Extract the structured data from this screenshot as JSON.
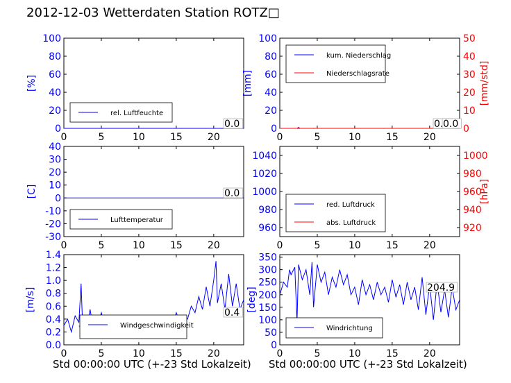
{
  "figure": {
    "title": "2012-12-03 Wetterdaten Station ROTZ□",
    "xlabel": "Std 00:00:00 UTC (+-23 Std Lokalzeit)"
  },
  "colors": {
    "axis_left": "#0000ff",
    "axis_right": "#ff0000",
    "frame": "#000000",
    "series_blue": "#0000ff",
    "series_red": "#ff0000",
    "series_light_blue": "#7777ff"
  },
  "chart_data": [
    {
      "id": "humidity",
      "type": "line",
      "xlim": [
        0,
        24
      ],
      "xticks": [
        0,
        5,
        10,
        15,
        20
      ],
      "ylim": [
        0,
        100
      ],
      "yticks": [
        0,
        20,
        40,
        60,
        80,
        100
      ],
      "ylabel": "[%]",
      "legend": {
        "placement": "lower-left",
        "entries": [
          "rel. Luftfeuchte"
        ]
      },
      "value_box": "0.0",
      "series": [
        {
          "name": "rel. Luftfeuchte",
          "color": "#0000ff",
          "x": [
            0,
            24
          ],
          "y": [
            0,
            0
          ]
        }
      ]
    },
    {
      "id": "precipitation",
      "type": "line",
      "xlim": [
        0,
        24
      ],
      "xticks": [
        0,
        5,
        10,
        15,
        20
      ],
      "ylim": [
        0,
        100
      ],
      "yticks": [
        0,
        20,
        40,
        60,
        80,
        100
      ],
      "ylabel": "[mm]",
      "y2lim": [
        0,
        50
      ],
      "y2ticks": [
        0,
        10,
        20,
        30,
        40,
        50
      ],
      "y2label": "[mm/std]",
      "legend": {
        "placement": "upper-left",
        "entries": [
          "kum. Niederschlag",
          "Niederschlagsrate"
        ]
      },
      "value_box": "0.0",
      "value_box_2": "0.0",
      "series": [
        {
          "name": "kum. Niederschlag",
          "color": "#0000ff",
          "axis": "left",
          "x": [
            0,
            24
          ],
          "y": [
            0,
            0
          ]
        },
        {
          "name": "Niederschlagsrate",
          "color": "#ff0000",
          "axis": "right",
          "x": [
            0,
            2.3,
            2.5,
            2.7,
            24
          ],
          "y": [
            0,
            0,
            0.6,
            0,
            0
          ]
        }
      ]
    },
    {
      "id": "temperature",
      "type": "line",
      "xlim": [
        0,
        24
      ],
      "xticks": [
        0,
        5,
        10,
        15,
        20
      ],
      "ylim": [
        -30,
        40
      ],
      "yticks": [
        -30,
        -20,
        -10,
        0,
        10,
        20,
        30,
        40
      ],
      "ylabel": "[C]",
      "legend": {
        "placement": "lower-left",
        "entries": [
          "Lufttemperatur"
        ]
      },
      "value_box": "0.0",
      "series": [
        {
          "name": "Lufttemperatur",
          "color": "#0000ff",
          "x": [
            0,
            24
          ],
          "y": [
            0,
            0
          ]
        }
      ]
    },
    {
      "id": "pressure",
      "type": "line",
      "xlim": [
        0,
        24
      ],
      "xticks": [
        0,
        5,
        10,
        15,
        20
      ],
      "ylim": [
        950,
        1050
      ],
      "yticks": [
        960,
        980,
        1000,
        1020,
        1040
      ],
      "y2lim": [
        910,
        1010
      ],
      "y2ticks": [
        920,
        940,
        960,
        980,
        1000
      ],
      "y2label": "[hPa]",
      "legend": {
        "placement": "lower-left",
        "entries": [
          "red. Luftdruck",
          "abs. Luftdruck"
        ]
      },
      "series": [
        {
          "name": "red. Luftdruck",
          "color": "#0000ff",
          "x": [],
          "y": []
        },
        {
          "name": "abs. Luftdruck",
          "color": "#ff0000",
          "x": [],
          "y": []
        }
      ]
    },
    {
      "id": "windspeed",
      "type": "line",
      "xlim": [
        0,
        24
      ],
      "xticks": [
        0,
        5,
        10,
        15,
        20
      ],
      "ylim": [
        0,
        1.4
      ],
      "yticks": [
        0.0,
        0.2,
        0.4,
        0.6,
        0.8,
        1.0,
        1.2,
        1.4
      ],
      "ylabel": "[m/s]",
      "legend": {
        "placement": "lower-center",
        "entries": [
          "Windgeschwindigkeit"
        ]
      },
      "value_box": "0.4",
      "series": [
        {
          "name": "Windgeschwindigkeit",
          "color": "#0000ff",
          "x": [
            0,
            0.5,
            1,
            1.5,
            2,
            2.3,
            2.5,
            3,
            3.5,
            4,
            4.5,
            5,
            5.5,
            6,
            6.5,
            7,
            7.5,
            8,
            8.5,
            9,
            9.5,
            10,
            10.5,
            11,
            11.5,
            12,
            12.5,
            13,
            13.5,
            14,
            14.5,
            15,
            15.5,
            16,
            16.5,
            17,
            17.5,
            18,
            18.5,
            19,
            19.5,
            20,
            20.3,
            20.5,
            21,
            21.5,
            22,
            22.5,
            23,
            23.5,
            24
          ],
          "y": [
            0.3,
            0.4,
            0.2,
            0.45,
            0.35,
            0.95,
            0.3,
            0.25,
            0.55,
            0.2,
            0.3,
            0.5,
            0.25,
            0.4,
            0.15,
            0.35,
            0.3,
            0.2,
            0.45,
            0.25,
            0.15,
            0.4,
            0.3,
            0.35,
            0.2,
            0.45,
            0.3,
            0.25,
            0.4,
            0.35,
            0.3,
            0.5,
            0.35,
            0.45,
            0.4,
            0.6,
            0.5,
            0.75,
            0.55,
            0.9,
            0.6,
            1.0,
            1.3,
            0.65,
            0.95,
            0.55,
            1.1,
            0.6,
            0.95,
            0.55,
            0.7
          ]
        },
        {
          "name": "",
          "color": "#7777ff",
          "x": [
            2,
            2.5,
            3,
            3.5,
            4,
            4.5,
            5,
            5.5,
            6,
            6.5,
            7,
            7.5,
            8,
            8.5,
            9,
            9.5,
            10,
            10.5,
            11,
            11.5,
            12,
            12.5,
            13,
            13.5,
            14,
            14.5,
            15,
            15.5,
            16
          ],
          "y": [
            0.3,
            0.2,
            0.32,
            0.22,
            0.35,
            0.25,
            0.3,
            0.2,
            0.33,
            0.25,
            0.3,
            0.18,
            0.28,
            0.22,
            0.15,
            0.3,
            0.22,
            0.28,
            0.2,
            0.32,
            0.25,
            0.3,
            0.22,
            0.33,
            0.25,
            0.3,
            0.28,
            0.35,
            0.3
          ]
        }
      ]
    },
    {
      "id": "winddirection",
      "type": "line",
      "xlim": [
        0,
        24
      ],
      "xticks": [
        0,
        5,
        10,
        15,
        20
      ],
      "ylim": [
        0,
        360
      ],
      "yticks": [
        0,
        50,
        100,
        150,
        200,
        250,
        300,
        350
      ],
      "ylabel": "[deg]",
      "legend": {
        "placement": "lower-left",
        "entries": [
          "Windrichtung"
        ]
      },
      "value_box": "204.9",
      "series": [
        {
          "name": "Windrichtung",
          "color": "#0000ff",
          "x": [
            0,
            0.5,
            1,
            1.3,
            1.5,
            2,
            2.3,
            2.5,
            3,
            3.5,
            4,
            4.3,
            4.5,
            5,
            5.5,
            6,
            6.5,
            7,
            7.5,
            8,
            8.5,
            9,
            9.5,
            10,
            10.5,
            11,
            11.5,
            12,
            12.5,
            13,
            13.5,
            14,
            14.5,
            15,
            15.5,
            16,
            16.5,
            17,
            17.5,
            18,
            18.5,
            19,
            19.5,
            20,
            20.5,
            21,
            21.5,
            22,
            22.5,
            23,
            23.5,
            24
          ],
          "y": [
            200,
            250,
            230,
            300,
            280,
            310,
            90,
            320,
            260,
            300,
            200,
            330,
            150,
            320,
            250,
            290,
            200,
            270,
            230,
            300,
            240,
            280,
            200,
            230,
            160,
            260,
            200,
            240,
            180,
            250,
            200,
            230,
            170,
            260,
            190,
            240,
            160,
            250,
            180,
            230,
            140,
            270,
            120,
            240,
            100,
            250,
            130,
            220,
            110,
            230,
            140,
            180
          ]
        }
      ]
    }
  ]
}
